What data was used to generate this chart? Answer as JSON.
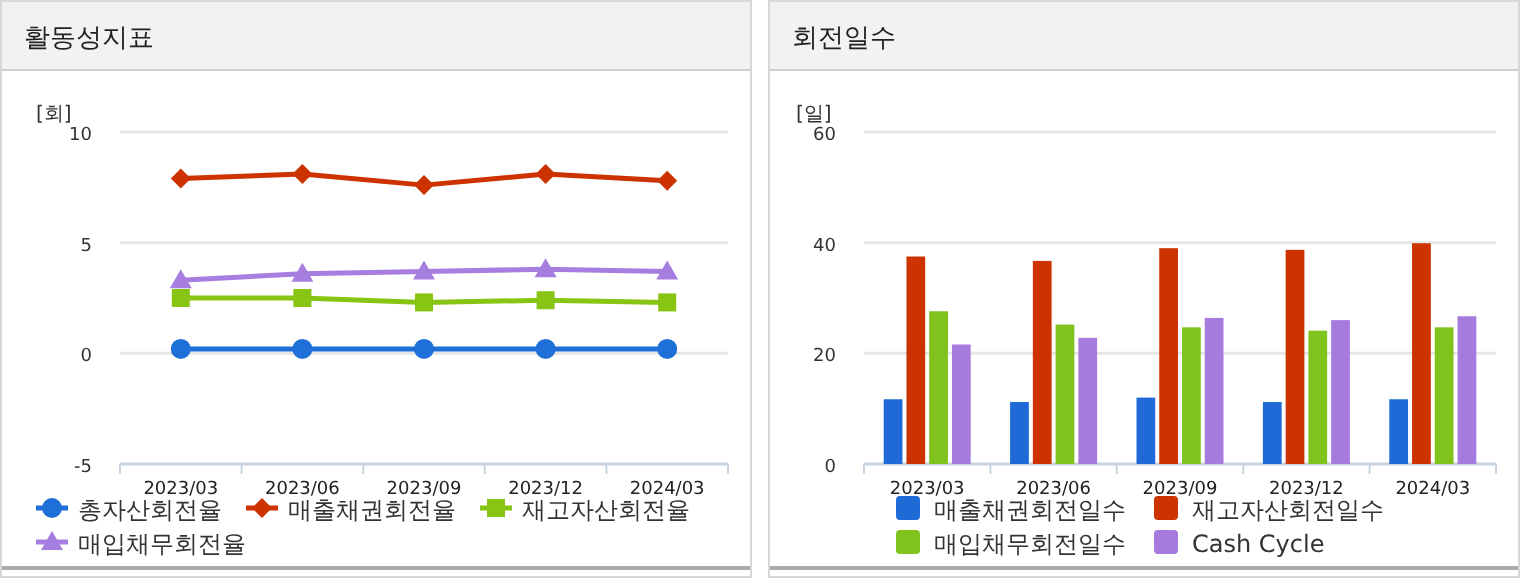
{
  "chart_data": [
    {
      "type": "line",
      "title": "활동성지표",
      "ylabel": "[회]",
      "categories": [
        "2023/03",
        "2023/06",
        "2023/09",
        "2023/12",
        "2024/03"
      ],
      "ylim": [
        -5,
        10
      ],
      "yticks": [
        -5,
        0,
        5,
        10
      ],
      "grid": "y",
      "legend": "bottom",
      "line_style": "solid",
      "series": [
        {
          "name": "총자산회전율",
          "color": "#1f6fd8",
          "marker": "circle",
          "values": [
            0.2,
            0.2,
            0.2,
            0.2,
            0.2
          ]
        },
        {
          "name": "매출채권회전율",
          "color": "#cc3300",
          "marker": "diamond",
          "values": [
            7.9,
            8.1,
            7.6,
            8.1,
            7.8
          ]
        },
        {
          "name": "재고자산회전율",
          "color": "#88c413",
          "marker": "square",
          "values": [
            2.5,
            2.5,
            2.3,
            2.4,
            2.3
          ]
        },
        {
          "name": "매입채무회전율",
          "color": "#a67ee0",
          "marker": "triangle",
          "values": [
            3.3,
            3.6,
            3.7,
            3.8,
            3.7
          ]
        }
      ]
    },
    {
      "type": "bar",
      "title": "회전일수",
      "ylabel": "[일]",
      "categories": [
        "2023/03",
        "2023/06",
        "2023/09",
        "2023/12",
        "2024/03"
      ],
      "ylim": [
        0,
        60
      ],
      "yticks": [
        0,
        20,
        40,
        60
      ],
      "grid": "y",
      "legend": "bottom",
      "series": [
        {
          "name": "매출채권회전일수",
          "color": "#1f6ad6",
          "values": [
            11.7,
            11.2,
            12.0,
            11.2,
            11.7
          ]
        },
        {
          "name": "재고자산회전일수",
          "color": "#cc3300",
          "values": [
            37.5,
            36.7,
            39.0,
            38.7,
            39.9
          ]
        },
        {
          "name": "매입채무회전일수",
          "color": "#7fc31c",
          "values": [
            27.6,
            25.2,
            24.7,
            24.1,
            24.7
          ]
        },
        {
          "name": "Cash Cycle",
          "color": "#a57bde",
          "values": [
            21.6,
            22.8,
            26.4,
            26.0,
            26.7
          ]
        }
      ]
    }
  ]
}
